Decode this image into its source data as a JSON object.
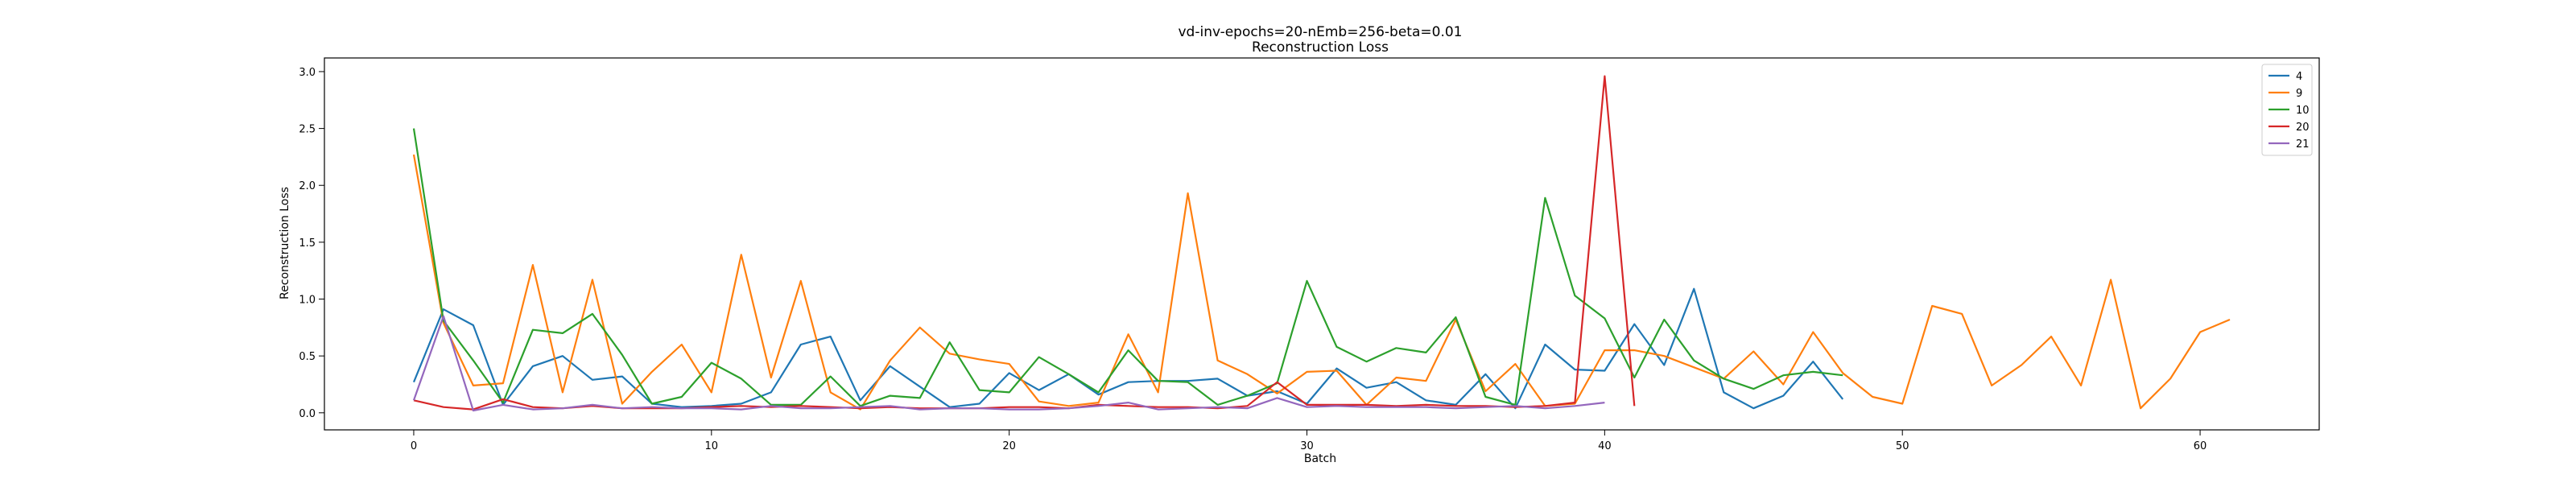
{
  "chart_data": {
    "type": "line",
    "title": "vd-inv-epochs=20-nEmb=256-beta=0.01",
    "subtitle": "Reconstruction Loss",
    "xlabel": "Batch",
    "ylabel": "Reconstruction Loss",
    "xlim": [
      -3,
      64
    ],
    "ylim": [
      -0.15,
      3.12
    ],
    "xticks": [
      0,
      10,
      20,
      30,
      40,
      50,
      60
    ],
    "yticks": [
      0.0,
      0.5,
      1.0,
      1.5,
      2.0,
      2.5,
      3.0
    ],
    "xtick_labels": [
      "0",
      "10",
      "20",
      "30",
      "40",
      "50",
      "60"
    ],
    "ytick_labels": [
      "0.0",
      "0.5",
      "1.0",
      "1.5",
      "2.0",
      "2.5",
      "3.0"
    ],
    "grid": false,
    "legend_position": "top-right",
    "series": [
      {
        "name": "4",
        "color": "#1f77b4",
        "x": [
          0,
          1,
          2,
          3,
          4,
          5,
          6,
          7,
          8,
          9,
          10,
          11,
          12,
          13,
          14,
          15,
          16,
          17,
          18,
          19,
          20,
          21,
          22,
          23,
          24,
          25,
          26,
          27,
          28,
          29,
          30,
          31,
          32,
          33,
          34,
          35,
          36,
          37,
          38,
          39,
          40,
          41,
          42,
          43,
          44,
          45,
          46,
          47,
          48
        ],
        "values": [
          0.27,
          0.91,
          0.77,
          0.07,
          0.41,
          0.5,
          0.29,
          0.32,
          0.08,
          0.05,
          0.06,
          0.08,
          0.18,
          0.6,
          0.67,
          0.11,
          0.41,
          0.23,
          0.05,
          0.08,
          0.35,
          0.2,
          0.34,
          0.16,
          0.27,
          0.28,
          0.28,
          0.3,
          0.15,
          0.19,
          0.08,
          0.39,
          0.22,
          0.27,
          0.11,
          0.07,
          0.34,
          0.04,
          0.6,
          0.38,
          0.37,
          0.78,
          0.42,
          1.09,
          0.18,
          0.04,
          0.15,
          0.45,
          0.12
        ]
      },
      {
        "name": "9",
        "color": "#ff7f0e",
        "x": [
          0,
          1,
          2,
          3,
          4,
          5,
          6,
          7,
          8,
          9,
          10,
          11,
          12,
          13,
          14,
          15,
          16,
          17,
          18,
          19,
          20,
          21,
          22,
          23,
          24,
          25,
          26,
          27,
          28,
          29,
          30,
          31,
          32,
          33,
          34,
          35,
          36,
          37,
          38,
          39,
          40,
          41,
          42,
          43,
          44,
          45,
          46,
          47,
          48,
          49,
          50,
          51,
          52,
          53,
          54,
          55,
          56,
          57,
          58,
          59,
          60,
          61
        ],
        "values": [
          2.27,
          0.79,
          0.24,
          0.26,
          1.3,
          0.18,
          1.17,
          0.08,
          0.36,
          0.6,
          0.18,
          1.39,
          0.31,
          1.16,
          0.18,
          0.03,
          0.46,
          0.75,
          0.52,
          0.47,
          0.43,
          0.1,
          0.06,
          0.09,
          0.69,
          0.18,
          1.93,
          0.46,
          0.34,
          0.17,
          0.36,
          0.37,
          0.07,
          0.31,
          0.28,
          0.82,
          0.19,
          0.43,
          0.06,
          0.08,
          0.55,
          0.55,
          0.5,
          0.4,
          0.3,
          0.54,
          0.25,
          0.71,
          0.35,
          0.14,
          0.08,
          0.94,
          0.87,
          0.24,
          0.42,
          0.67,
          0.24,
          1.17,
          0.04,
          0.3,
          0.71,
          0.82
        ]
      },
      {
        "name": "10",
        "color": "#2ca02c",
        "x": [
          0,
          1,
          2,
          3,
          4,
          5,
          6,
          7,
          8,
          9,
          10,
          11,
          12,
          13,
          14,
          15,
          16,
          17,
          18,
          19,
          20,
          21,
          22,
          23,
          24,
          25,
          26,
          27,
          28,
          29,
          30,
          31,
          32,
          33,
          34,
          35,
          36,
          37,
          38,
          39,
          40,
          41,
          42,
          43,
          44,
          45,
          46,
          47,
          48
        ],
        "values": [
          2.5,
          0.81,
          0.46,
          0.09,
          0.73,
          0.7,
          0.87,
          0.51,
          0.08,
          0.14,
          0.44,
          0.3,
          0.07,
          0.07,
          0.32,
          0.06,
          0.15,
          0.13,
          0.62,
          0.2,
          0.18,
          0.49,
          0.34,
          0.18,
          0.55,
          0.28,
          0.27,
          0.07,
          0.15,
          0.26,
          1.16,
          0.58,
          0.45,
          0.57,
          0.53,
          0.84,
          0.14,
          0.07,
          1.89,
          1.03,
          0.83,
          0.31,
          0.82,
          0.46,
          0.3,
          0.21,
          0.33,
          0.36,
          0.33
        ]
      },
      {
        "name": "20",
        "color": "#d62728",
        "x": [
          0,
          1,
          2,
          3,
          4,
          5,
          6,
          7,
          8,
          9,
          10,
          11,
          12,
          13,
          14,
          15,
          16,
          17,
          18,
          19,
          20,
          21,
          22,
          23,
          24,
          25,
          26,
          27,
          28,
          29,
          30,
          31,
          32,
          33,
          34,
          35,
          36,
          37,
          38,
          39,
          40,
          41
        ],
        "values": [
          0.11,
          0.05,
          0.03,
          0.12,
          0.05,
          0.04,
          0.06,
          0.04,
          0.04,
          0.04,
          0.05,
          0.06,
          0.05,
          0.06,
          0.05,
          0.04,
          0.05,
          0.04,
          0.04,
          0.04,
          0.05,
          0.05,
          0.04,
          0.07,
          0.06,
          0.05,
          0.05,
          0.04,
          0.06,
          0.27,
          0.07,
          0.07,
          0.07,
          0.06,
          0.07,
          0.06,
          0.06,
          0.05,
          0.06,
          0.09,
          2.96,
          0.06
        ]
      },
      {
        "name": "21",
        "color": "#9467bd",
        "x": [
          0,
          1,
          2,
          3,
          4,
          5,
          6,
          7,
          8,
          9,
          10,
          11,
          12,
          13,
          14,
          15,
          16,
          17,
          18,
          19,
          20,
          21,
          22,
          23,
          24,
          25,
          26,
          27,
          28,
          29,
          30,
          31,
          32,
          33,
          34,
          35,
          36,
          37,
          38,
          39,
          40
        ],
        "values": [
          0.11,
          0.85,
          0.02,
          0.07,
          0.03,
          0.04,
          0.07,
          0.04,
          0.05,
          0.04,
          0.04,
          0.03,
          0.06,
          0.04,
          0.04,
          0.05,
          0.06,
          0.03,
          0.04,
          0.04,
          0.03,
          0.03,
          0.04,
          0.06,
          0.09,
          0.03,
          0.04,
          0.05,
          0.04,
          0.13,
          0.05,
          0.06,
          0.05,
          0.05,
          0.05,
          0.04,
          0.05,
          0.06,
          0.04,
          0.06,
          0.09
        ]
      }
    ]
  }
}
